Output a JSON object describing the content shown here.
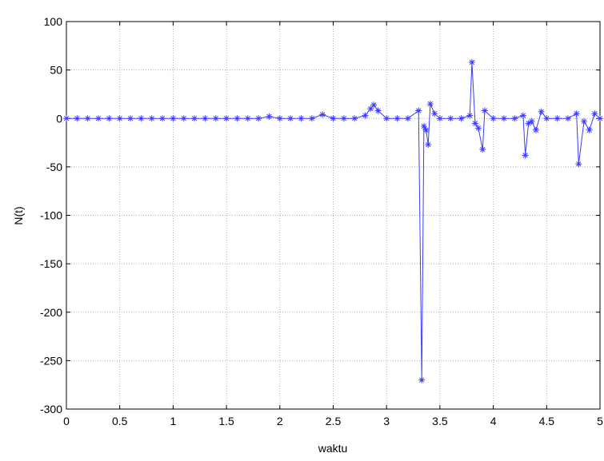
{
  "chart_data": {
    "type": "line",
    "xlabel": "waktu",
    "ylabel": "N(t)",
    "x": [
      0,
      0.1,
      0.2,
      0.3,
      0.4,
      0.5,
      0.6,
      0.7,
      0.8,
      0.9,
      1.0,
      1.1,
      1.2,
      1.3,
      1.4,
      1.5,
      1.6,
      1.7,
      1.8,
      1.9,
      2.0,
      2.1,
      2.2,
      2.3,
      2.4,
      2.5,
      2.6,
      2.7,
      2.8,
      2.85,
      2.88,
      2.92,
      3.0,
      3.1,
      3.2,
      3.3,
      3.33,
      3.35,
      3.37,
      3.39,
      3.41,
      3.45,
      3.5,
      3.6,
      3.7,
      3.78,
      3.8,
      3.83,
      3.86,
      3.9,
      3.92,
      4.0,
      4.1,
      4.2,
      4.28,
      4.3,
      4.33,
      4.36,
      4.4,
      4.45,
      4.5,
      4.6,
      4.7,
      4.78,
      4.8,
      4.85,
      4.9,
      4.95,
      5.0
    ],
    "series": [
      {
        "color": "#3b3bff",
        "marker": "*",
        "values": [
          0,
          0,
          0,
          0,
          0,
          0,
          0,
          0,
          0,
          0,
          0,
          0,
          0,
          0,
          0,
          0,
          0,
          0,
          0,
          2,
          0,
          0,
          0,
          0,
          4,
          0,
          0,
          0,
          3,
          10,
          14,
          8,
          0,
          0,
          0,
          8,
          -270,
          -8,
          -12,
          -27,
          15,
          5,
          0,
          0,
          0,
          3,
          58,
          -5,
          -10,
          -32,
          8,
          0,
          0,
          0,
          3,
          -38,
          -5,
          -3,
          -12,
          7,
          0,
          0,
          0,
          5,
          -47,
          -3,
          -12,
          5,
          0
        ]
      }
    ],
    "xlim": [
      0,
      5
    ],
    "ylim": [
      -300,
      100
    ],
    "xticks": [
      0,
      0.5,
      1,
      1.5,
      2,
      2.5,
      3,
      3.5,
      4,
      4.5,
      5
    ],
    "yticks": [
      -300,
      -250,
      -200,
      -150,
      -100,
      -50,
      0,
      50,
      100
    ],
    "grid": true
  }
}
